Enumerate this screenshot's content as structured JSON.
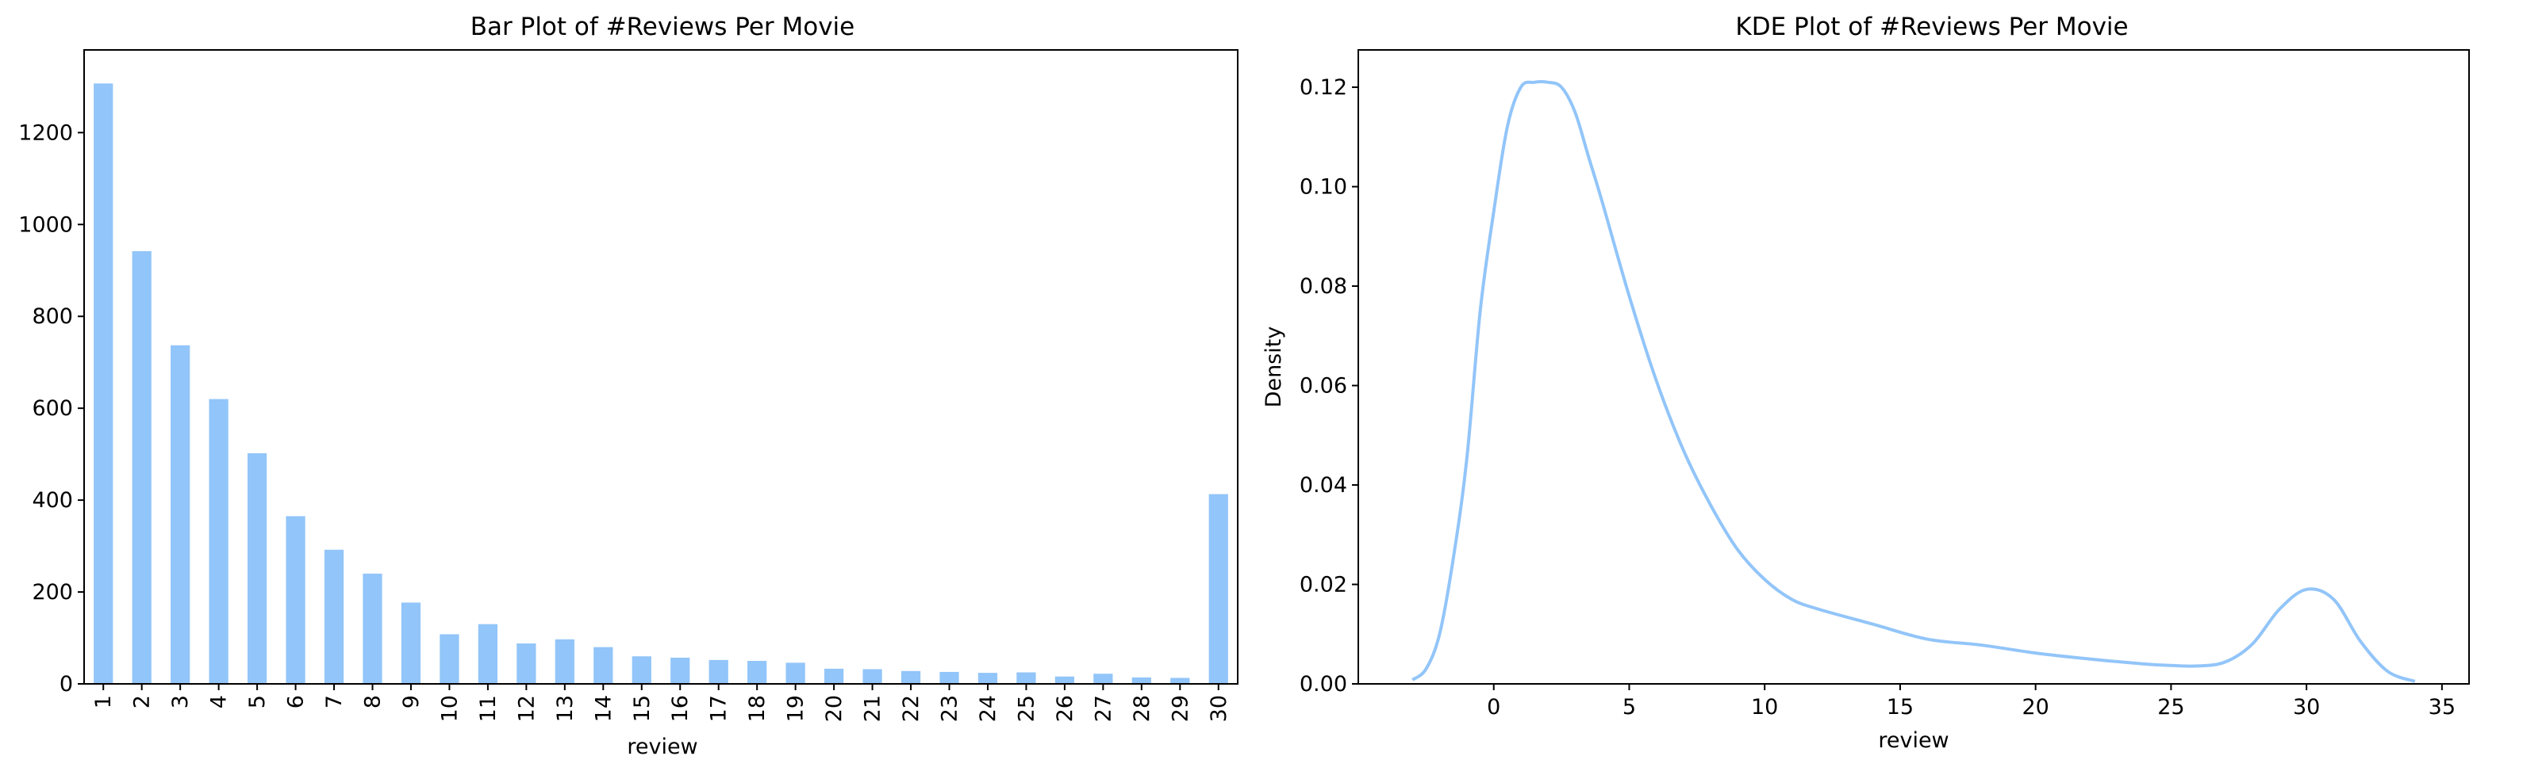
{
  "chart_data": [
    {
      "type": "bar",
      "title": "Bar Plot of #Reviews Per Movie",
      "xlabel": "review",
      "ylabel": "",
      "categories": [
        "1",
        "2",
        "3",
        "4",
        "5",
        "6",
        "7",
        "8",
        "9",
        "10",
        "11",
        "12",
        "13",
        "14",
        "15",
        "16",
        "17",
        "18",
        "19",
        "20",
        "21",
        "22",
        "23",
        "24",
        "25",
        "26",
        "27",
        "28",
        "29",
        "30"
      ],
      "values": [
        1307,
        942,
        737,
        620,
        502,
        365,
        292,
        240,
        177,
        108,
        130,
        88,
        97,
        80,
        60,
        57,
        52,
        50,
        46,
        33,
        32,
        28,
        26,
        24,
        25,
        16,
        22,
        14,
        13,
        413
      ],
      "ylim": [
        0,
        1380
      ],
      "yticks": [
        0,
        200,
        400,
        600,
        800,
        1000,
        1200
      ],
      "color": "#92c5f9",
      "grid": false
    },
    {
      "type": "line",
      "title": "KDE Plot of #Reviews Per Movie",
      "xlabel": "review",
      "ylabel": "Density",
      "x": [
        -3,
        -2.5,
        -2,
        -1.5,
        -1,
        -0.5,
        0,
        0.5,
        1,
        1.5,
        2,
        2.5,
        3,
        3.5,
        4,
        5,
        6,
        7,
        8,
        9,
        10,
        11,
        12,
        14,
        16,
        18,
        20,
        22,
        24,
        25,
        26,
        27,
        28,
        29,
        30,
        31,
        32,
        33,
        34
      ],
      "y": [
        0.0008,
        0.003,
        0.01,
        0.025,
        0.045,
        0.075,
        0.095,
        0.112,
        0.12,
        0.121,
        0.121,
        0.12,
        0.115,
        0.106,
        0.097,
        0.078,
        0.061,
        0.047,
        0.036,
        0.027,
        0.021,
        0.017,
        0.015,
        0.012,
        0.009,
        0.0078,
        0.0062,
        0.005,
        0.004,
        0.0037,
        0.0036,
        0.0044,
        0.008,
        0.015,
        0.019,
        0.017,
        0.0085,
        0.0025,
        0.0005
      ],
      "xlim": [
        -5,
        36
      ],
      "ylim": [
        0,
        0.1275
      ],
      "xticks": [
        0,
        5,
        10,
        15,
        20,
        25,
        30,
        35
      ],
      "yticks": [
        "0.00",
        "0.02",
        "0.04",
        "0.06",
        "0.08",
        "0.10",
        "0.12"
      ],
      "color": "#92c5f9",
      "grid": false
    }
  ]
}
